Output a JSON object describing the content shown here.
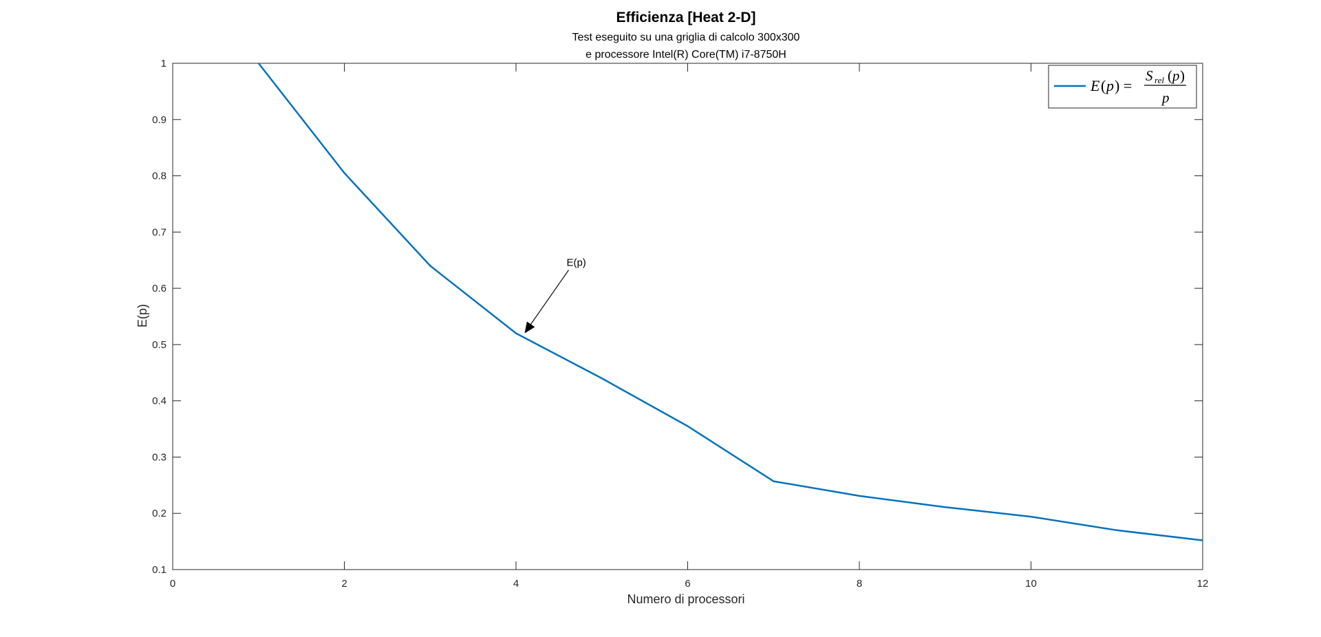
{
  "chart_data": {
    "type": "line",
    "title": "Efficienza [Heat 2-D]",
    "subtitle": [
      "Test eseguito su una griglia di calcolo 300x300",
      "e processore Intel(R) Core(TM) i7-8750H"
    ],
    "xlabel": "Numero di processori",
    "ylabel": "E(p)",
    "xlim": [
      0,
      12
    ],
    "ylim": [
      0.1,
      1
    ],
    "x_ticks": [
      0,
      2,
      4,
      6,
      8,
      10,
      12
    ],
    "y_ticks": [
      0.1,
      0.2,
      0.3,
      0.4,
      0.5,
      0.6,
      0.7,
      0.8,
      0.9,
      1
    ],
    "grid": false,
    "legend_position": "top-right",
    "series": [
      {
        "name": "E(p) = S_rel(p) / p",
        "color": "#0072BD",
        "x": [
          1,
          2,
          3,
          4,
          5,
          6,
          7,
          8,
          9,
          10,
          11,
          12
        ],
        "y": [
          1.0,
          0.805,
          0.64,
          0.52,
          0.44,
          0.355,
          0.257,
          0.231,
          0.211,
          0.194,
          0.17,
          0.152
        ]
      }
    ],
    "annotations": [
      {
        "text": "E(p)",
        "arrow_to": [
          4.1,
          0.52
        ]
      }
    ]
  }
}
